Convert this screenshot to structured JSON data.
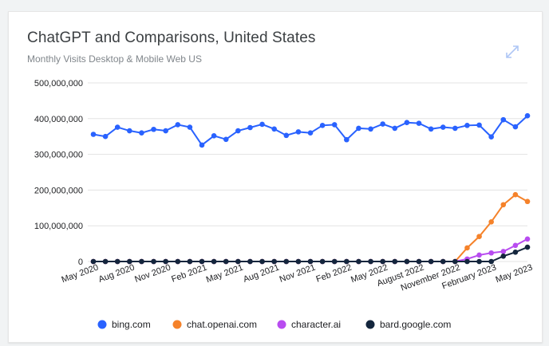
{
  "header": {
    "title": "ChatGPT and Comparisons, United States",
    "subtitle": "Monthly Visits Desktop & Mobile Web US",
    "expand_icon": "expand-diagonal-icon"
  },
  "colors": {
    "bing": "#2962ff",
    "openai": "#f5822a",
    "character": "#b84cf0",
    "bard": "#14263d",
    "grid": "#e3e3e3",
    "expand_icon": "#aec6f5"
  },
  "chart_data": {
    "type": "line",
    "title": "ChatGPT and Comparisons, United States",
    "subtitle": "Monthly Visits Desktop & Mobile Web US",
    "ylim": [
      0,
      500000000
    ],
    "yticks": [
      0,
      100000000,
      200000000,
      300000000,
      400000000,
      500000000
    ],
    "ytick_labels": [
      "0",
      "100,000,000",
      "200,000,000",
      "300,000,000",
      "400,000,000",
      "500,000,000"
    ],
    "x_start": "May 2020",
    "x_end": "May 2023",
    "xtick_labels": [
      "May 2020",
      "Aug 2020",
      "Nov 2020",
      "Feb 2021",
      "May 2021",
      "Aug 2021",
      "Nov 2021",
      "Feb 2022",
      "May 2022",
      "August 2022",
      "November 2022",
      "February 2023",
      "May 2023"
    ],
    "grid": true,
    "legend_position": "bottom",
    "series": [
      {
        "name": "bing.com",
        "color": "#2962ff",
        "values": [
          356000000,
          350000000,
          376000000,
          366000000,
          360000000,
          370000000,
          366000000,
          383000000,
          376000000,
          326000000,
          352000000,
          342000000,
          366000000,
          375000000,
          384000000,
          371000000,
          353000000,
          363000000,
          360000000,
          381000000,
          383000000,
          341000000,
          373000000,
          371000000,
          385000000,
          373000000,
          389000000,
          387000000,
          371000000,
          376000000,
          373000000,
          381000000,
          382000000,
          349000000,
          397000000,
          377000000,
          408000000
        ]
      },
      {
        "name": "chat.openai.com",
        "color": "#f5822a",
        "values": [
          0,
          0,
          0,
          0,
          0,
          0,
          0,
          0,
          0,
          0,
          0,
          0,
          0,
          0,
          0,
          0,
          0,
          0,
          0,
          0,
          0,
          0,
          0,
          0,
          0,
          0,
          0,
          0,
          0,
          0,
          0,
          38000000,
          70000000,
          111000000,
          159000000,
          187000000,
          168000000
        ]
      },
      {
        "name": "character.ai",
        "color": "#b84cf0",
        "values": [
          0,
          0,
          0,
          0,
          0,
          0,
          0,
          0,
          0,
          0,
          0,
          0,
          0,
          0,
          0,
          0,
          0,
          0,
          0,
          0,
          0,
          0,
          0,
          0,
          0,
          0,
          0,
          0,
          0,
          0,
          0,
          7000000,
          18000000,
          24000000,
          28000000,
          45000000,
          63000000
        ]
      },
      {
        "name": "bard.google.com",
        "color": "#14263d",
        "values": [
          0,
          0,
          0,
          0,
          0,
          0,
          0,
          0,
          0,
          0,
          0,
          0,
          0,
          0,
          0,
          0,
          0,
          0,
          0,
          0,
          0,
          0,
          0,
          0,
          0,
          0,
          0,
          0,
          0,
          0,
          0,
          0,
          0,
          0,
          15000000,
          26000000,
          40000000
        ]
      }
    ]
  }
}
